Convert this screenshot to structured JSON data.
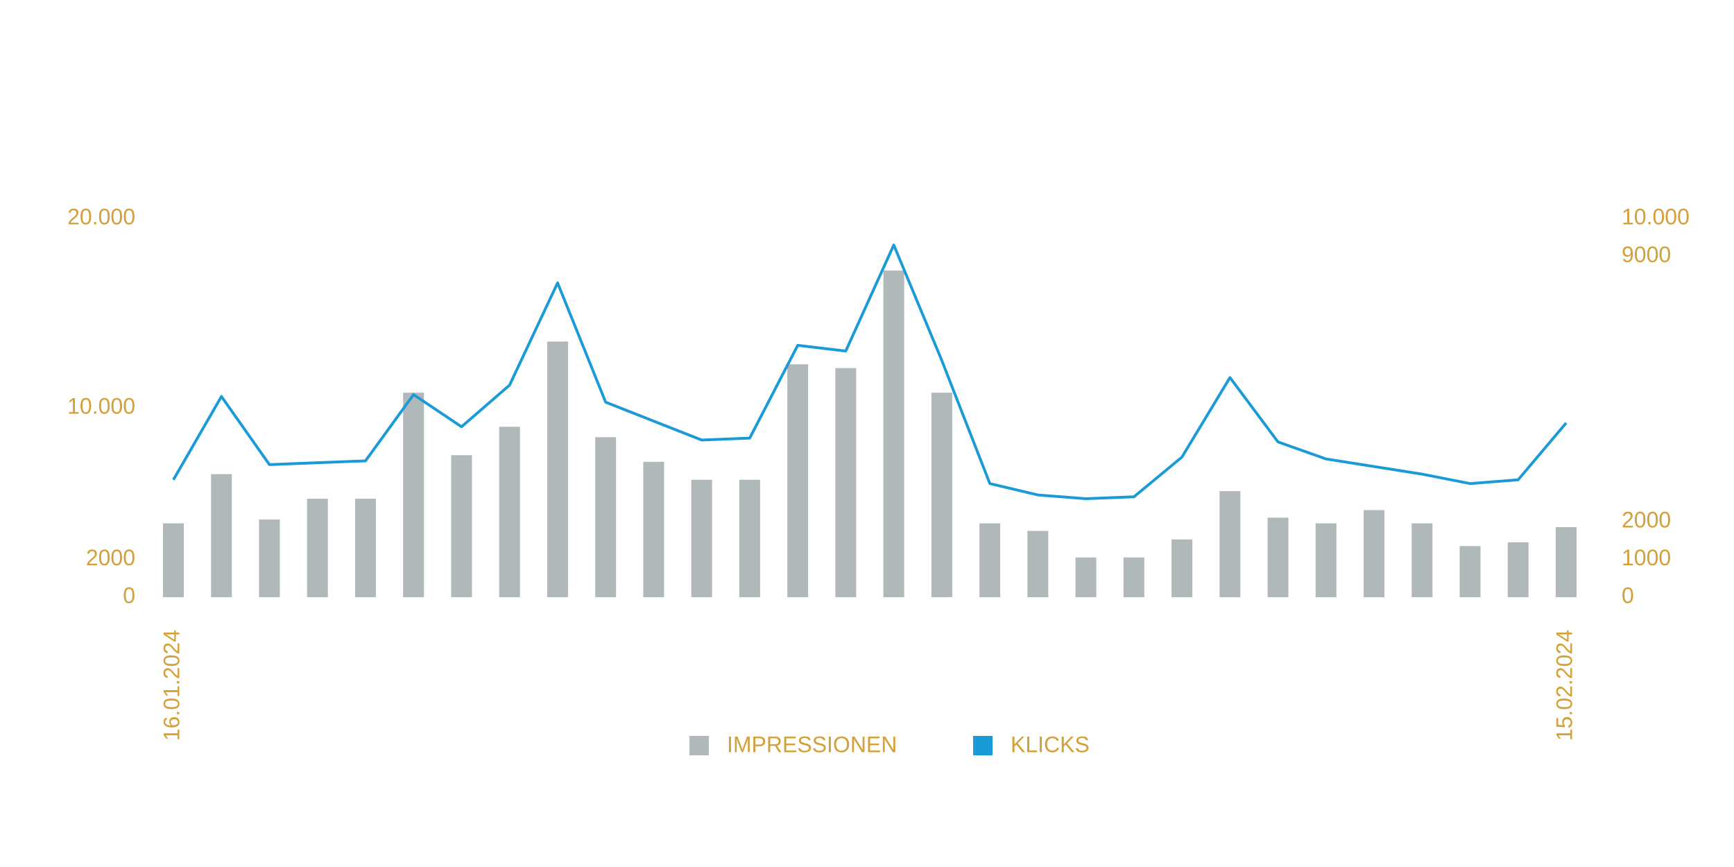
{
  "chart_data": {
    "type": "bar-line",
    "categories": [
      "16.01.2024",
      null,
      null,
      null,
      null,
      null,
      null,
      null,
      null,
      null,
      null,
      null,
      null,
      null,
      null,
      null,
      null,
      null,
      null,
      null,
      null,
      null,
      null,
      null,
      null,
      null,
      null,
      null,
      null,
      "15.02.2024"
    ],
    "series": [
      {
        "name": "IMPRESSIONEN",
        "color": "#b1b8b9",
        "type": "bar",
        "values": [
          3900,
          6500,
          4100,
          5200,
          5200,
          10800,
          7500,
          9000,
          13500,
          8450,
          7150,
          6200,
          6200,
          12300,
          12100,
          17250,
          10800,
          3900,
          3500,
          2100,
          2100,
          3050,
          5600,
          4200,
          3900,
          4600,
          3900,
          2700,
          2900,
          3700
        ]
      },
      {
        "name": "KLICKS",
        "color": "#1a9ad6",
        "type": "line",
        "axis": "y2",
        "values": [
          3100,
          5300,
          3500,
          3550,
          3600,
          5350,
          4500,
          5600,
          8300,
          5150,
          4650,
          4150,
          4200,
          6650,
          6500,
          9300,
          6250,
          3000,
          2700,
          2600,
          2650,
          3700,
          5800,
          4100,
          3650,
          3450,
          3250,
          3000,
          3100,
          4600
        ]
      }
    ],
    "ylim": [
      0,
      20000
    ],
    "yticks": [
      0,
      2000,
      {
        "value": 10000,
        "label": "10.000"
      },
      {
        "value": 20000,
        "label": "20.000"
      }
    ],
    "y2lim": [
      0,
      10000
    ],
    "y2ticks": [
      0,
      1000,
      2000,
      9000,
      {
        "value": 10000,
        "label": "10.000"
      }
    ],
    "grid": false,
    "legend": "bottom"
  }
}
